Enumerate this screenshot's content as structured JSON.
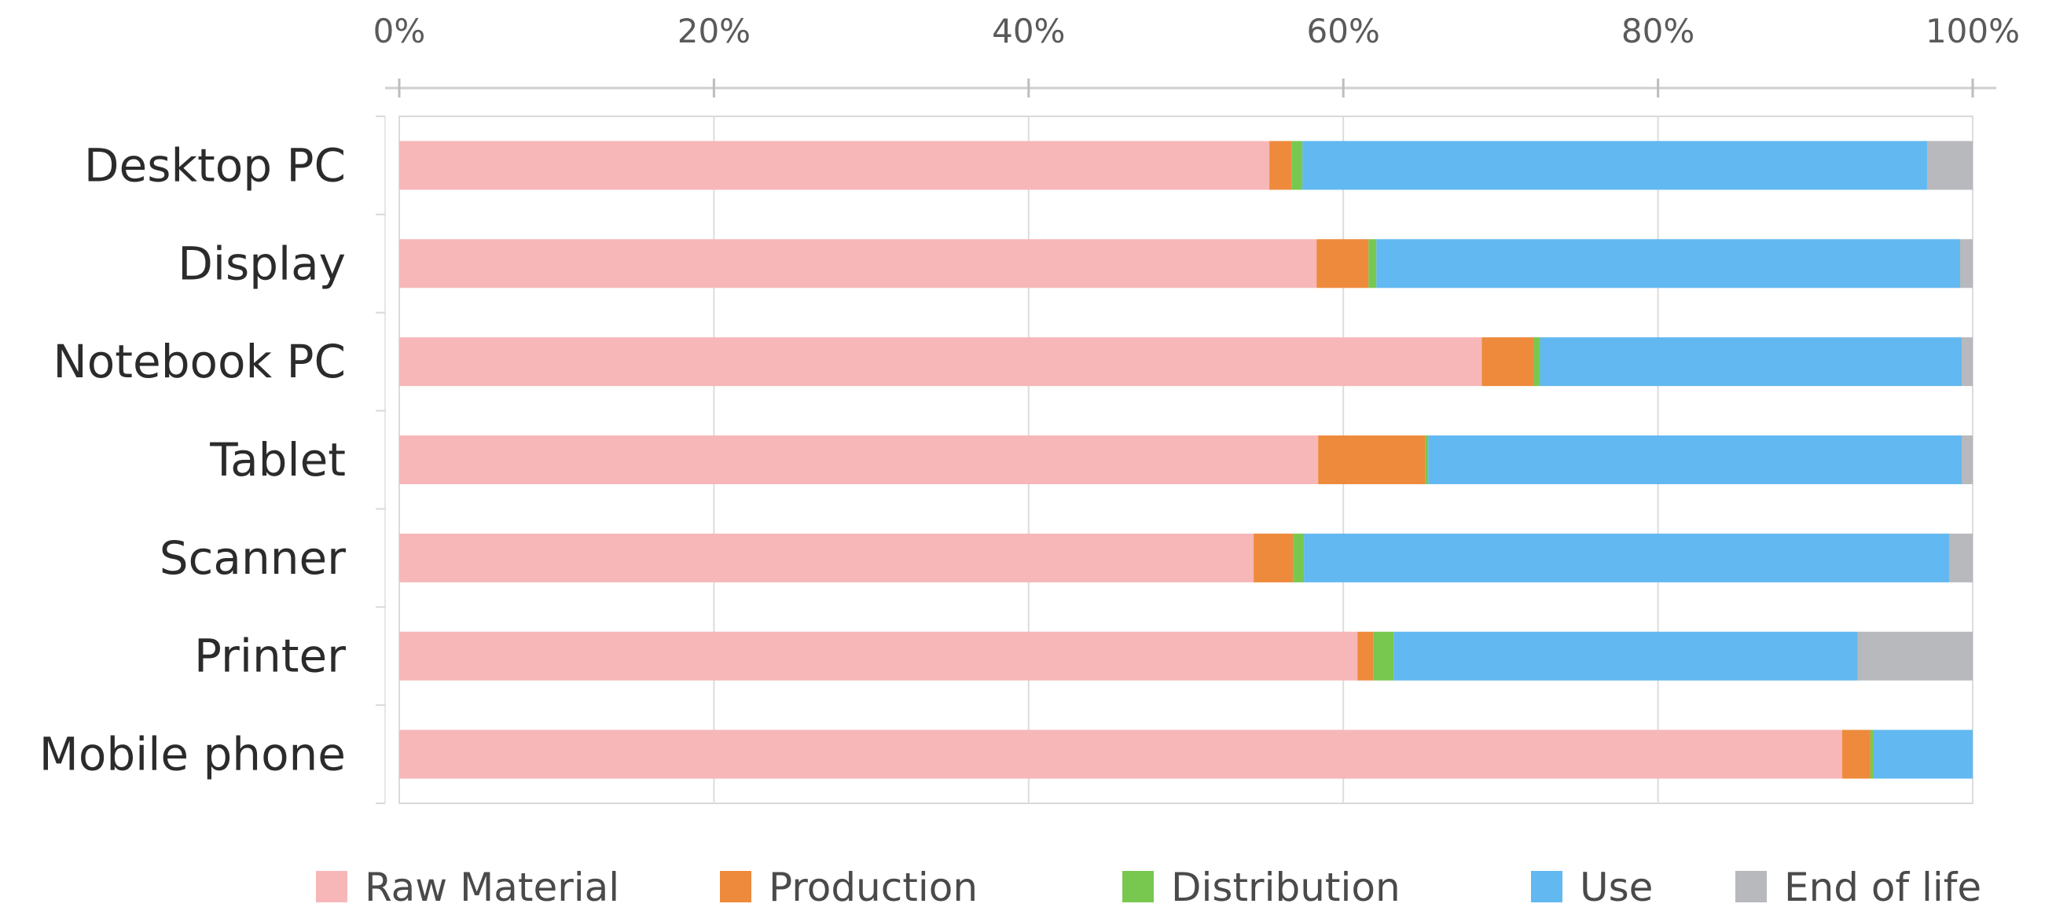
{
  "chart_data": {
    "type": "bar",
    "orientation": "horizontal",
    "stacked": true,
    "percent_scale": true,
    "categories": [
      "Desktop PC",
      "Display",
      "Notebook PC",
      "Tablet",
      "Scanner",
      "Printer",
      "Mobile phone"
    ],
    "series": [
      {
        "name": "Raw Material",
        "color": "#f7b7b9",
        "values": [
          55.3,
          58.3,
          68.8,
          58.4,
          54.3,
          60.9,
          91.7
        ]
      },
      {
        "name": "Production",
        "color": "#ee8a3c",
        "values": [
          1.4,
          3.3,
          3.3,
          6.8,
          2.5,
          1.0,
          1.8
        ]
      },
      {
        "name": "Distribution",
        "color": "#78c850",
        "values": [
          0.7,
          0.5,
          0.4,
          0.2,
          0.7,
          1.3,
          0.2
        ]
      },
      {
        "name": "Use",
        "color": "#62b8f0",
        "values": [
          39.7,
          37.1,
          26.8,
          33.9,
          41.0,
          29.5,
          6.3
        ]
      },
      {
        "name": "End of life",
        "color": "#b7b9bd",
        "values": [
          2.9,
          0.8,
          0.7,
          0.7,
          1.5,
          7.3,
          0.0
        ]
      }
    ],
    "xaxis": {
      "position": "top",
      "range": [
        0,
        100
      ],
      "ticks": [
        "0%",
        "20%",
        "40%",
        "60%",
        "80%",
        "100%"
      ]
    },
    "grid": true,
    "legend": "bottom"
  }
}
